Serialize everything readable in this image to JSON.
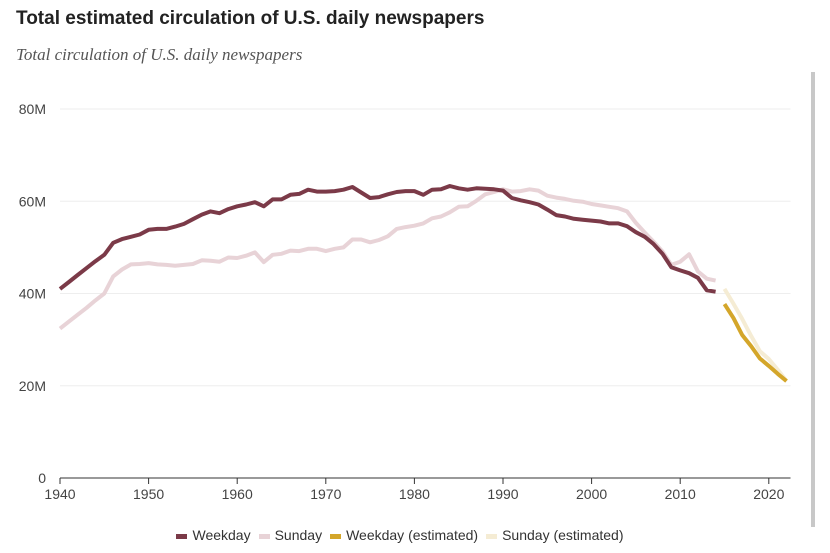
{
  "title": "Total estimated circulation of U.S. daily newspapers",
  "subtitle": "Total circulation of U.S. daily newspapers",
  "chart_data": {
    "type": "line",
    "ylim": [
      0,
      80
    ],
    "xlim": [
      1940,
      2022
    ],
    "yticks": [
      {
        "v": 0,
        "label": "0"
      },
      {
        "v": 20,
        "label": "20M"
      },
      {
        "v": 40,
        "label": "40M"
      },
      {
        "v": 60,
        "label": "60M"
      },
      {
        "v": 80,
        "label": "80M"
      }
    ],
    "xticks": [
      1940,
      1950,
      1960,
      1970,
      1980,
      1990,
      2000,
      2010,
      2020
    ],
    "grid": true,
    "legend_position": "bottom",
    "series": [
      {
        "name": "Weekday",
        "color": "#7b3a48",
        "x_start": 1940,
        "values": [
          41.0,
          42.5,
          44.0,
          45.5,
          47.0,
          48.4,
          51.0,
          51.8,
          52.3,
          52.8,
          53.8,
          54.0,
          54.0,
          54.5,
          55.1,
          56.1,
          57.1,
          57.8,
          57.4,
          58.3,
          58.9,
          59.3,
          59.8,
          58.9,
          60.4,
          60.4,
          61.4,
          61.6,
          62.5,
          62.1,
          62.1,
          62.2,
          62.5,
          63.1,
          61.9,
          60.7,
          60.9,
          61.5,
          62.0,
          62.2,
          62.2,
          61.4,
          62.5,
          62.6,
          63.3,
          62.8,
          62.5,
          62.8,
          62.7,
          62.6,
          62.3,
          60.7,
          60.2,
          59.8,
          59.3,
          58.2,
          57.0,
          56.7,
          56.2,
          56.0,
          55.8,
          55.6,
          55.2,
          55.2,
          54.6,
          53.3,
          52.3,
          50.7,
          48.6,
          45.7,
          45.0,
          44.4,
          43.4,
          40.7,
          40.4
        ]
      },
      {
        "name": "Sunday",
        "color": "#e8d3d7",
        "x_start": 1940,
        "values": [
          32.4,
          33.9,
          35.4,
          36.9,
          38.5,
          40.0,
          43.7,
          45.2,
          46.3,
          46.4,
          46.6,
          46.3,
          46.2,
          46.0,
          46.2,
          46.4,
          47.2,
          47.1,
          46.9,
          47.8,
          47.7,
          48.2,
          48.9,
          46.8,
          48.4,
          48.6,
          49.3,
          49.2,
          49.7,
          49.7,
          49.2,
          49.7,
          50.0,
          51.7,
          51.7,
          51.1,
          51.6,
          52.4,
          54.0,
          54.4,
          54.7,
          55.2,
          56.3,
          56.7,
          57.6,
          58.8,
          58.9,
          60.1,
          61.5,
          62.0,
          62.6,
          62.1,
          62.2,
          62.6,
          62.3,
          61.2,
          60.8,
          60.5,
          60.1,
          59.9,
          59.4,
          59.1,
          58.8,
          58.5,
          57.8,
          55.3,
          53.2,
          51.2,
          49.1,
          46.2,
          46.9,
          48.5,
          44.8,
          43.2,
          42.8
        ]
      },
      {
        "name": "Weekday (estimated)",
        "color": "#d4a62a",
        "x_start": 2015,
        "values": [
          37.7,
          34.7,
          31.0,
          28.6,
          25.9,
          24.3,
          22.6,
          21.0
        ]
      },
      {
        "name": "Sunday (estimated)",
        "color": "#f5ecd4",
        "x_start": 2015,
        "values": [
          41.0,
          37.8,
          34.5,
          30.8,
          27.5,
          25.8,
          23.5,
          21.0
        ]
      }
    ]
  }
}
